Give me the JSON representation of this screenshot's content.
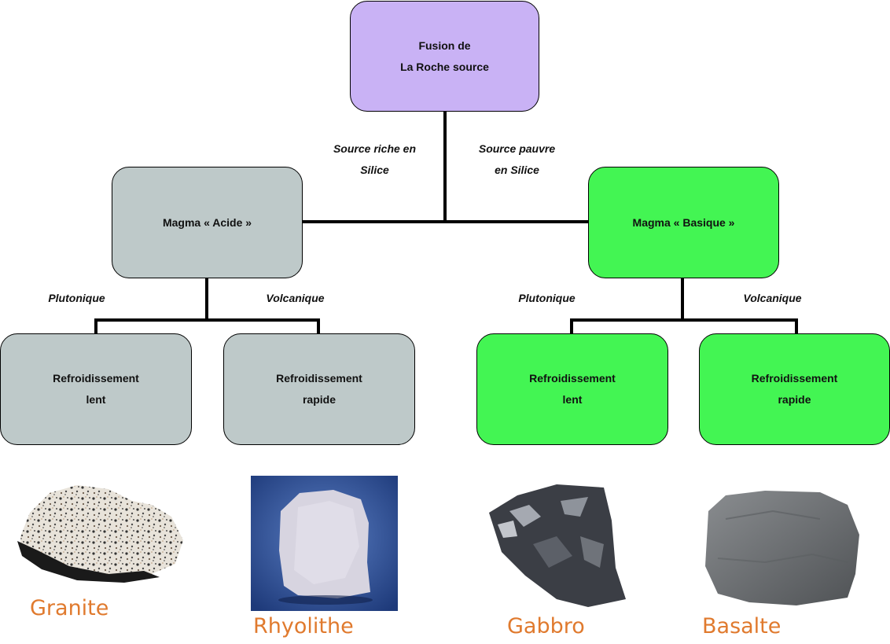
{
  "colors": {
    "source": "#c9b2f5",
    "acid": "#bec9c9",
    "basic": "#43f553",
    "rock_label": "#e07a2e"
  },
  "root": {
    "line1": "Fusion de",
    "line2": "La Roche source"
  },
  "edges": {
    "rich": {
      "line1": "Source riche en",
      "line2": "Silice"
    },
    "poor": {
      "line1": "Source pauvre",
      "line2": "en Silice"
    }
  },
  "acid": {
    "label": "Magma « Acide »",
    "plutonic": "Plutonique",
    "volcanic": "Volcanique",
    "slow": {
      "line1": "Refroidissement",
      "line2": "lent"
    },
    "fast": {
      "line1": "Refroidissement",
      "line2": "rapide"
    }
  },
  "basic": {
    "label": "Magma « Basique »",
    "plutonic": "Plutonique",
    "volcanic": "Volcanique",
    "slow": {
      "line1": "Refroidissement",
      "line2": "lent"
    },
    "fast": {
      "line1": "Refroidissement",
      "line2": "rapide"
    }
  },
  "rocks": {
    "granite": "Granite",
    "rhyolite": "Rhyolithe",
    "gabbro": "Gabbro",
    "basalt": "Basalte"
  }
}
